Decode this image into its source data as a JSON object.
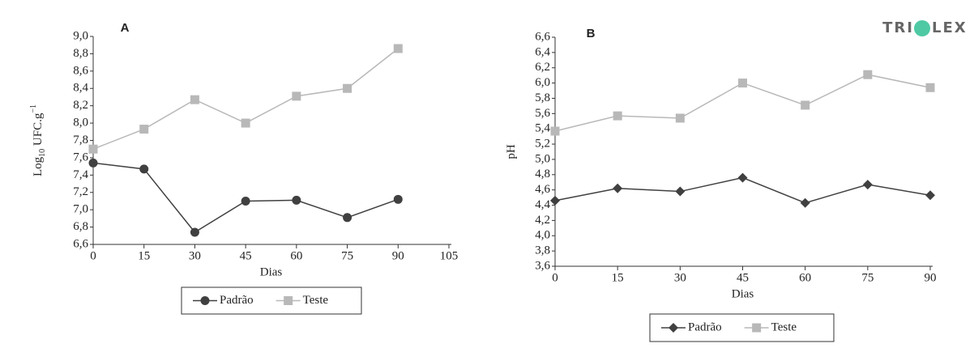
{
  "logo": {
    "left": "TRI",
    "right": "LEX"
  },
  "chart_data": [
    {
      "type": "line",
      "title": "A",
      "xlabel": "Dias",
      "ylabel": {
        "base": "Log",
        "sub": "10",
        "main": " UFC.g",
        "sup": "−1"
      },
      "x": [
        0,
        15,
        30,
        45,
        60,
        75,
        90
      ],
      "xlim": [
        0,
        105
      ],
      "xticks": [
        0,
        15,
        30,
        45,
        60,
        75,
        90,
        105
      ],
      "ylim": [
        6.6,
        9.0
      ],
      "yticks": [
        {
          "value": 6.6,
          "label": "6,6"
        },
        {
          "value": 6.8,
          "label": "6,8"
        },
        {
          "value": 7.0,
          "label": "7,0"
        },
        {
          "value": 7.2,
          "label": "7,2"
        },
        {
          "value": 7.4,
          "label": "7,4"
        },
        {
          "value": 7.6,
          "label": "7,6"
        },
        {
          "value": 7.8,
          "label": "7,8"
        },
        {
          "value": 8.0,
          "label": "8,0"
        },
        {
          "value": 8.2,
          "label": "8,2"
        },
        {
          "value": 8.4,
          "label": "8,4"
        },
        {
          "value": 8.6,
          "label": "8,6"
        },
        {
          "value": 8.8,
          "label": "8,8"
        },
        {
          "value": 9.0,
          "label": "9,0"
        }
      ],
      "series": [
        {
          "name": "Padrão",
          "color": "#404040",
          "marker": "circle",
          "values": [
            7.54,
            7.47,
            6.74,
            7.1,
            7.11,
            6.91,
            7.12
          ]
        },
        {
          "name": "Teste",
          "color": "#b8b8b8",
          "marker": "square",
          "values": [
            7.7,
            7.93,
            8.27,
            8.0,
            8.31,
            8.4,
            8.86
          ]
        }
      ]
    },
    {
      "type": "line",
      "title": "B",
      "xlabel": "Dias",
      "ylabel": {
        "main": "pH"
      },
      "x": [
        0,
        15,
        30,
        45,
        60,
        75,
        90
      ],
      "xlim": [
        0,
        90
      ],
      "xticks": [
        0,
        15,
        30,
        45,
        60,
        75,
        90
      ],
      "ylim": [
        3.6,
        6.6
      ],
      "yticks": [
        {
          "value": 3.6,
          "label": "3,6"
        },
        {
          "value": 3.8,
          "label": "3,8"
        },
        {
          "value": 4.0,
          "label": "4,0"
        },
        {
          "value": 4.2,
          "label": "4,2"
        },
        {
          "value": 4.4,
          "label": "4,4"
        },
        {
          "value": 4.6,
          "label": "4,6"
        },
        {
          "value": 4.8,
          "label": "4,8"
        },
        {
          "value": 5.0,
          "label": "5,0"
        },
        {
          "value": 5.2,
          "label": "5,2"
        },
        {
          "value": 5.4,
          "label": "5,4"
        },
        {
          "value": 5.6,
          "label": "5,6"
        },
        {
          "value": 5.8,
          "label": "5,8"
        },
        {
          "value": 6.0,
          "label": "6,0"
        },
        {
          "value": 6.2,
          "label": "6,2"
        },
        {
          "value": 6.4,
          "label": "6,4"
        },
        {
          "value": 6.6,
          "label": "6,6"
        }
      ],
      "series": [
        {
          "name": "Padrão",
          "color": "#404040",
          "marker": "diamond",
          "values": [
            4.46,
            4.62,
            4.58,
            4.76,
            4.43,
            4.67,
            4.53
          ]
        },
        {
          "name": "Teste",
          "color": "#b8b8b8",
          "marker": "square",
          "values": [
            5.37,
            5.57,
            5.54,
            6.0,
            5.71,
            6.11,
            5.94
          ]
        }
      ]
    }
  ]
}
